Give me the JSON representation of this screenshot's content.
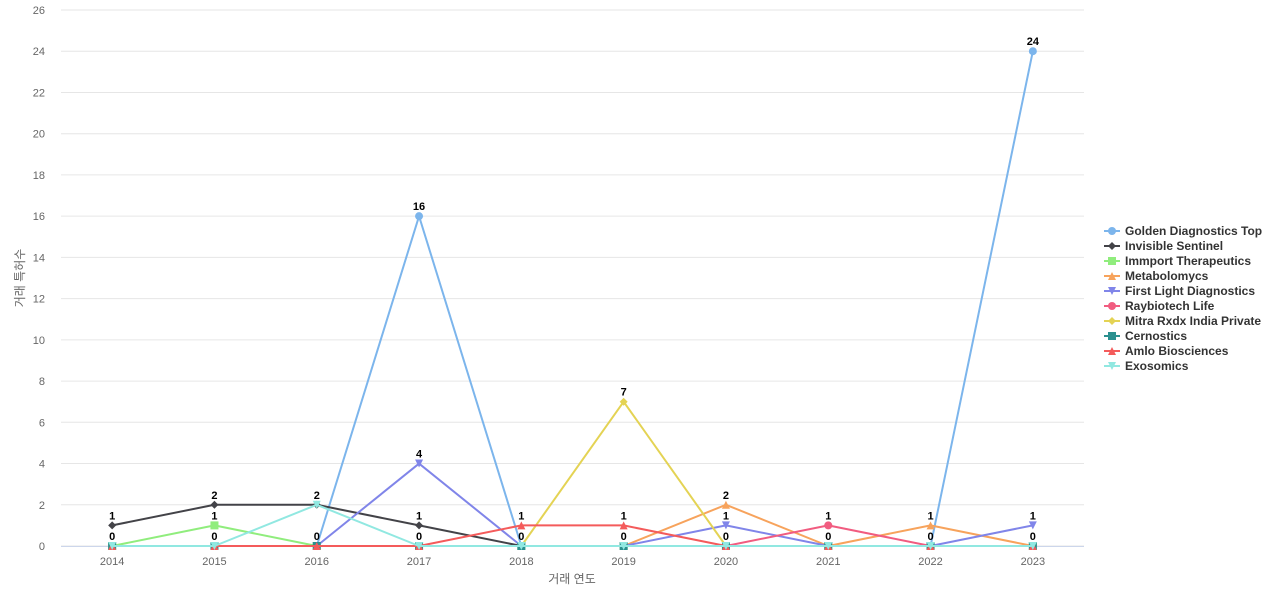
{
  "chart_data": {
    "type": "line",
    "xlabel": "거래 연도",
    "ylabel": "거래 특허수",
    "ylim": [
      0,
      26
    ],
    "yticks": [
      0,
      2,
      4,
      6,
      8,
      10,
      12,
      14,
      16,
      18,
      20,
      22,
      24,
      26
    ],
    "categories": [
      "2014",
      "2015",
      "2016",
      "2017",
      "2018",
      "2019",
      "2020",
      "2021",
      "2022",
      "2023"
    ],
    "legend_position": "right",
    "grid": true,
    "series": [
      {
        "name": "Golden Diagnostics Top",
        "color": "#7cb5ec",
        "marker": "circle",
        "values": [
          0,
          0,
          0,
          16,
          0,
          0,
          0,
          0,
          0,
          24
        ]
      },
      {
        "name": "Invisible Sentinel",
        "color": "#434348",
        "marker": "diamond",
        "values": [
          1,
          2,
          2,
          1,
          0,
          0,
          0,
          0,
          0,
          0
        ]
      },
      {
        "name": "Immport Therapeutics",
        "color": "#90ed7d",
        "marker": "square",
        "values": [
          0,
          1,
          0,
          0,
          0,
          0,
          0,
          0,
          0,
          0
        ]
      },
      {
        "name": "Metabolomycs",
        "color": "#f7a35c",
        "marker": "triangle",
        "values": [
          0,
          0,
          0,
          0,
          0,
          0,
          2,
          0,
          1,
          0
        ]
      },
      {
        "name": "First Light Diagnostics",
        "color": "#8085e9",
        "marker": "triangle-down",
        "values": [
          0,
          0,
          0,
          4,
          0,
          0,
          1,
          0,
          0,
          1
        ]
      },
      {
        "name": "Raybiotech Life",
        "color": "#f15c80",
        "marker": "circle",
        "values": [
          0,
          0,
          0,
          0,
          0,
          0,
          0,
          1,
          0,
          0
        ]
      },
      {
        "name": "Mitra Rxdx India Private",
        "color": "#e4d354",
        "marker": "diamond",
        "values": [
          0,
          0,
          0,
          0,
          0,
          7,
          0,
          0,
          0,
          0
        ]
      },
      {
        "name": "Cernostics",
        "color": "#2b908f",
        "marker": "square",
        "values": [
          0,
          0,
          0,
          0,
          0,
          0,
          0,
          0,
          0,
          0
        ]
      },
      {
        "name": "Amlo Biosciences",
        "color": "#f45b5b",
        "marker": "triangle",
        "values": [
          0,
          0,
          0,
          0,
          1,
          1,
          0,
          0,
          0,
          0
        ]
      },
      {
        "name": "Exosomics",
        "color": "#91e8e1",
        "marker": "triangle-down",
        "values": [
          0,
          0,
          2,
          0,
          0,
          0,
          0,
          0,
          0,
          0
        ]
      }
    ],
    "data_labels": [
      {
        "series": "Golden Diagnostics Top",
        "category": "2017",
        "text": "16"
      },
      {
        "series": "Golden Diagnostics Top",
        "category": "2023",
        "text": "24"
      },
      {
        "series": "Mitra Rxdx India Private",
        "category": "2019",
        "text": "7"
      },
      {
        "series": "First Light Diagnostics",
        "category": "2017",
        "text": "4"
      },
      {
        "series": "Invisible Sentinel",
        "category": "2015",
        "text": "2"
      },
      {
        "series": "Invisible Sentinel",
        "category": "2016",
        "text": "2"
      },
      {
        "series": "Metabolomycs",
        "category": "2020",
        "text": "2"
      },
      {
        "series": "Invisible Sentinel",
        "category": "2014",
        "text": "1"
      },
      {
        "series": "Immport Therapeutics",
        "category": "2015",
        "text": "1"
      },
      {
        "series": "Invisible Sentinel",
        "category": "2017",
        "text": "1"
      },
      {
        "series": "Amlo Biosciences",
        "category": "2018",
        "text": "1"
      },
      {
        "series": "Amlo Biosciences",
        "category": "2019",
        "text": "1"
      },
      {
        "series": "First Light Diagnostics",
        "category": "2020",
        "text": "1"
      },
      {
        "series": "Raybiotech Life",
        "category": "2021",
        "text": "1"
      },
      {
        "series": "Metabolomycs",
        "category": "2022",
        "text": "1"
      },
      {
        "series": "First Light Diagnostics",
        "category": "2023",
        "text": "1"
      },
      {
        "series": "Golden Diagnostics Top",
        "category": "2014",
        "text": "0"
      },
      {
        "series": "Golden Diagnostics Top",
        "category": "2015",
        "text": "0"
      },
      {
        "series": "Golden Diagnostics Top",
        "category": "2016",
        "text": "0"
      },
      {
        "series": "Golden Diagnostics Top",
        "category": "2017",
        "text": "0",
        "stack": true
      },
      {
        "series": "Golden Diagnostics Top",
        "category": "2018",
        "text": "0"
      },
      {
        "series": "Golden Diagnostics Top",
        "category": "2019",
        "text": "0"
      },
      {
        "series": "Golden Diagnostics Top",
        "category": "2020",
        "text": "0"
      },
      {
        "series": "Golden Diagnostics Top",
        "category": "2021",
        "text": "0"
      },
      {
        "series": "Golden Diagnostics Top",
        "category": "2022",
        "text": "0"
      },
      {
        "series": "Golden Diagnostics Top",
        "category": "2023",
        "text": "0",
        "stack": true
      }
    ]
  }
}
